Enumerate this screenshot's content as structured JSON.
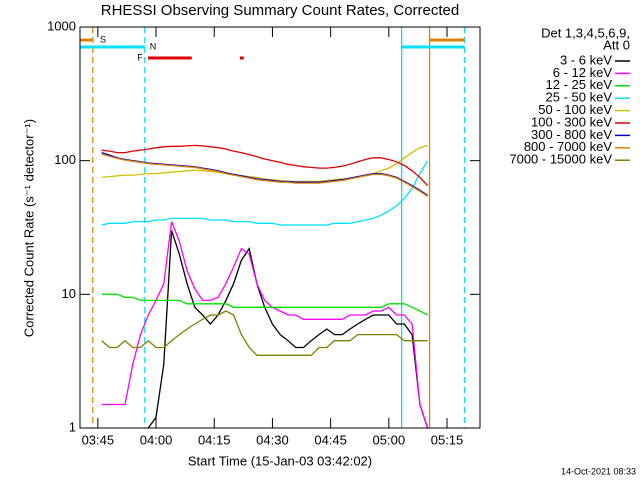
{
  "chart_data": {
    "type": "line",
    "title": "RHESSI Observing Summary Count Rates, Corrected",
    "x_label": "Start Time (15-Jan-03 03:42:02)",
    "y_label": "Corrected Count Rate (s⁻¹ detector⁻¹)",
    "legend_header": [
      "Det 1,3,4,5,6,9,",
      "Att 0"
    ],
    "footer": "14-Oct-2021 08:33",
    "log_y": true,
    "xlim": [
      220.4,
      323.5
    ],
    "ylim": [
      1,
      1000
    ],
    "xticks": [
      {
        "value": 225,
        "label": "03:45"
      },
      {
        "value": 240,
        "label": "04:00"
      },
      {
        "value": 255,
        "label": "04:15"
      },
      {
        "value": 270,
        "label": "04:30"
      },
      {
        "value": 285,
        "label": "04:45"
      },
      {
        "value": 300,
        "label": "05:00"
      },
      {
        "value": 315,
        "label": "05:15"
      }
    ],
    "yticks": [
      1,
      10,
      100,
      1000
    ],
    "x": [
      226,
      228,
      230,
      232,
      234,
      236,
      238,
      240,
      242,
      244,
      246,
      248,
      250,
      252,
      254,
      256,
      258,
      260,
      262,
      264,
      266,
      268,
      270,
      272,
      274,
      276,
      278,
      280,
      282,
      284,
      286,
      288,
      290,
      292,
      294,
      296,
      298,
      300,
      302,
      304,
      306,
      308,
      310
    ],
    "series": [
      {
        "name": "3 - 6 keV",
        "color": "#000000",
        "values": [
          null,
          null,
          null,
          null,
          null,
          null,
          1,
          1.2,
          3,
          30,
          20,
          12,
          8,
          7,
          6,
          7,
          9,
          12,
          18,
          22,
          12,
          8,
          6,
          5,
          4.5,
          4,
          4,
          4.5,
          5,
          5.5,
          5,
          5,
          5.5,
          6,
          6.5,
          7,
          7,
          7,
          6,
          6,
          5,
          1.5,
          1
        ]
      },
      {
        "name": "6 - 12 keV",
        "color": "#ff00ff",
        "values": [
          1.5,
          1.5,
          1.5,
          1.5,
          3,
          5,
          7,
          9,
          12,
          35,
          25,
          15,
          11,
          9,
          9,
          9.5,
          12,
          16,
          22,
          20,
          12,
          9,
          8,
          7.5,
          7,
          7,
          6.5,
          6.5,
          6.5,
          6.5,
          6.5,
          6.5,
          7,
          7,
          7,
          7.5,
          7.5,
          8,
          7,
          7,
          6,
          1.5,
          1
        ]
      },
      {
        "name": "12 - 25 keV",
        "color": "#00e000",
        "values": [
          10,
          10,
          10,
          9.5,
          9.5,
          9,
          9,
          9,
          9,
          9,
          9,
          8.5,
          8.5,
          8.5,
          8.5,
          8.5,
          8.5,
          8,
          8,
          8,
          8,
          8,
          8,
          8,
          8,
          8,
          8,
          8,
          8,
          8,
          8,
          8,
          8,
          8,
          8,
          8,
          8,
          8.5,
          8.5,
          8.5,
          8,
          7.5,
          7
        ]
      },
      {
        "name": "25 - 50 keV",
        "color": "#00e0ff",
        "values": [
          33,
          34,
          34,
          34,
          35,
          35,
          35,
          36,
          36,
          37,
          37,
          37,
          37,
          37,
          36,
          36,
          36,
          35,
          35,
          35,
          34,
          34,
          34,
          33,
          33,
          33,
          33,
          33,
          33,
          33,
          34,
          34,
          34,
          35,
          36,
          37,
          39,
          42,
          46,
          52,
          62,
          80,
          100
        ]
      },
      {
        "name": "50 - 100 keV",
        "color": "#d0c000",
        "values": [
          75,
          76,
          77,
          78,
          78,
          79,
          80,
          80,
          81,
          82,
          83,
          84,
          85,
          84,
          83,
          82,
          80,
          79,
          77,
          76,
          75,
          73,
          72,
          71,
          70,
          70,
          70,
          70,
          70,
          71,
          72,
          73,
          74,
          76,
          78,
          80,
          84,
          88,
          95,
          105,
          115,
          125,
          130
        ]
      },
      {
        "name": "100 - 300 keV",
        "color": "#e00000",
        "values": [
          120,
          118,
          115,
          115,
          118,
          120,
          122,
          125,
          127,
          128,
          128,
          129,
          130,
          129,
          127,
          125,
          122,
          118,
          115,
          111,
          107,
          103,
          100,
          97,
          94,
          92,
          90,
          89,
          88,
          88,
          89,
          91,
          94,
          98,
          102,
          105,
          105,
          102,
          98,
          92,
          84,
          75,
          65
        ]
      },
      {
        "name": "300 - 800 keV",
        "color": "#0000d0",
        "values": [
          115,
          110,
          105,
          102,
          100,
          98,
          96,
          95,
          94,
          93,
          92,
          91,
          90,
          88,
          86,
          84,
          81,
          79,
          77,
          75,
          73,
          72,
          71,
          70,
          70,
          69,
          69,
          69,
          69,
          70,
          71,
          72,
          74,
          76,
          78,
          80,
          80,
          78,
          75,
          70,
          65,
          60,
          55
        ]
      },
      {
        "name": "800 - 7000 keV",
        "color": "#e08000",
        "values": [
          112,
          108,
          104,
          101,
          99,
          97,
          95,
          94,
          93,
          92,
          91,
          90,
          89,
          87,
          85,
          83,
          80,
          78,
          76,
          74,
          72,
          71,
          70,
          69,
          69,
          68,
          68,
          68,
          68,
          69,
          70,
          71,
          73,
          75,
          77,
          79,
          79,
          77,
          74,
          69,
          64,
          59,
          54
        ]
      },
      {
        "name": "7000 - 15000 keV",
        "color": "#808000",
        "values": [
          4.5,
          4,
          4,
          4.5,
          4,
          4,
          4.5,
          4,
          4,
          4.5,
          5,
          5.5,
          6,
          6.5,
          7,
          7,
          7.5,
          7,
          5,
          4,
          3.5,
          3.5,
          3.5,
          3.5,
          3.5,
          3.5,
          3.5,
          3.5,
          4,
          4,
          4.5,
          4.5,
          4.5,
          5,
          5,
          5,
          5,
          5,
          5,
          4.5,
          4.5,
          4.5,
          4.5
        ]
      }
    ],
    "flags": [
      {
        "label": "S",
        "color": "#e08000",
        "intervals": [
          [
            220.4,
            223.5
          ],
          [
            310.5,
            319.5
          ]
        ]
      },
      {
        "label": "N",
        "color": "#00e0ff",
        "intervals": [
          [
            220.4,
            237.1
          ],
          [
            303.3,
            319.5
          ]
        ]
      },
      {
        "label": "F",
        "color": "#e00000",
        "intervals": [
          [
            237.9,
            249.2
          ],
          [
            261.6,
            262.6
          ]
        ]
      }
    ],
    "vlines": [
      {
        "x": 223.7,
        "color": "#e08000",
        "dashed": true
      },
      {
        "x": 237.1,
        "color": "#00e0ff",
        "dashed": true
      },
      {
        "x": 303.3,
        "color": "#00e0ff",
        "dashed": false
      },
      {
        "x": 310.5,
        "color": "#e08000",
        "dashed": false
      },
      {
        "x": 319.5,
        "color": "#00e0ff",
        "dashed": true
      }
    ]
  }
}
